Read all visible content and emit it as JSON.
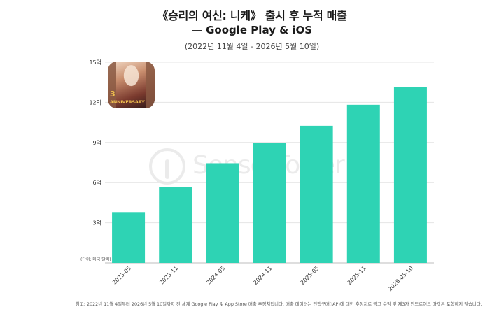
{
  "header": {
    "title": "《승리의 여신: 니케》 출시 후 누적 매출",
    "subtitle": "— Google Play & iOS",
    "date_range": "(2022년 11월 4일 - 2026년 5월 10일)"
  },
  "unit_note": "(단위: 미국 달러)",
  "footnote": "참고: 2022년 11월 4일부터 2026년 5월 10일까지 전 세계 Google Play 및 App Store 매출 추정치입니다. 매출 데이터는 인앱구매(IAP)에 대한 추정치로 광고 수익 및 제3자 안드로이드 마켓은 포함하지 않습니다.",
  "game_icon": {
    "name": "game-icon",
    "badge_number": "3",
    "badge_text": "ANNIVERSARY",
    "badge_suffix": "TH"
  },
  "watermark": {
    "text": "SensorTower"
  },
  "colors": {
    "bar": "#2ed3b4",
    "grid": "#e4e4e4",
    "axis_text": "#333333"
  },
  "chart_data": {
    "type": "bar",
    "categories": [
      "2023-05",
      "2023-11",
      "2024-05",
      "2024-11",
      "2025-05",
      "2025-11",
      "2026-05-10"
    ],
    "values": [
      3.8,
      5.65,
      7.45,
      8.97,
      10.25,
      11.82,
      13.15
    ],
    "y_ticks": [
      "3억",
      "6억",
      "9억",
      "12억",
      "15억"
    ],
    "y_tick_values": [
      3,
      6,
      9,
      12,
      15
    ],
    "ylim": [
      0,
      15
    ],
    "grid": true
  }
}
